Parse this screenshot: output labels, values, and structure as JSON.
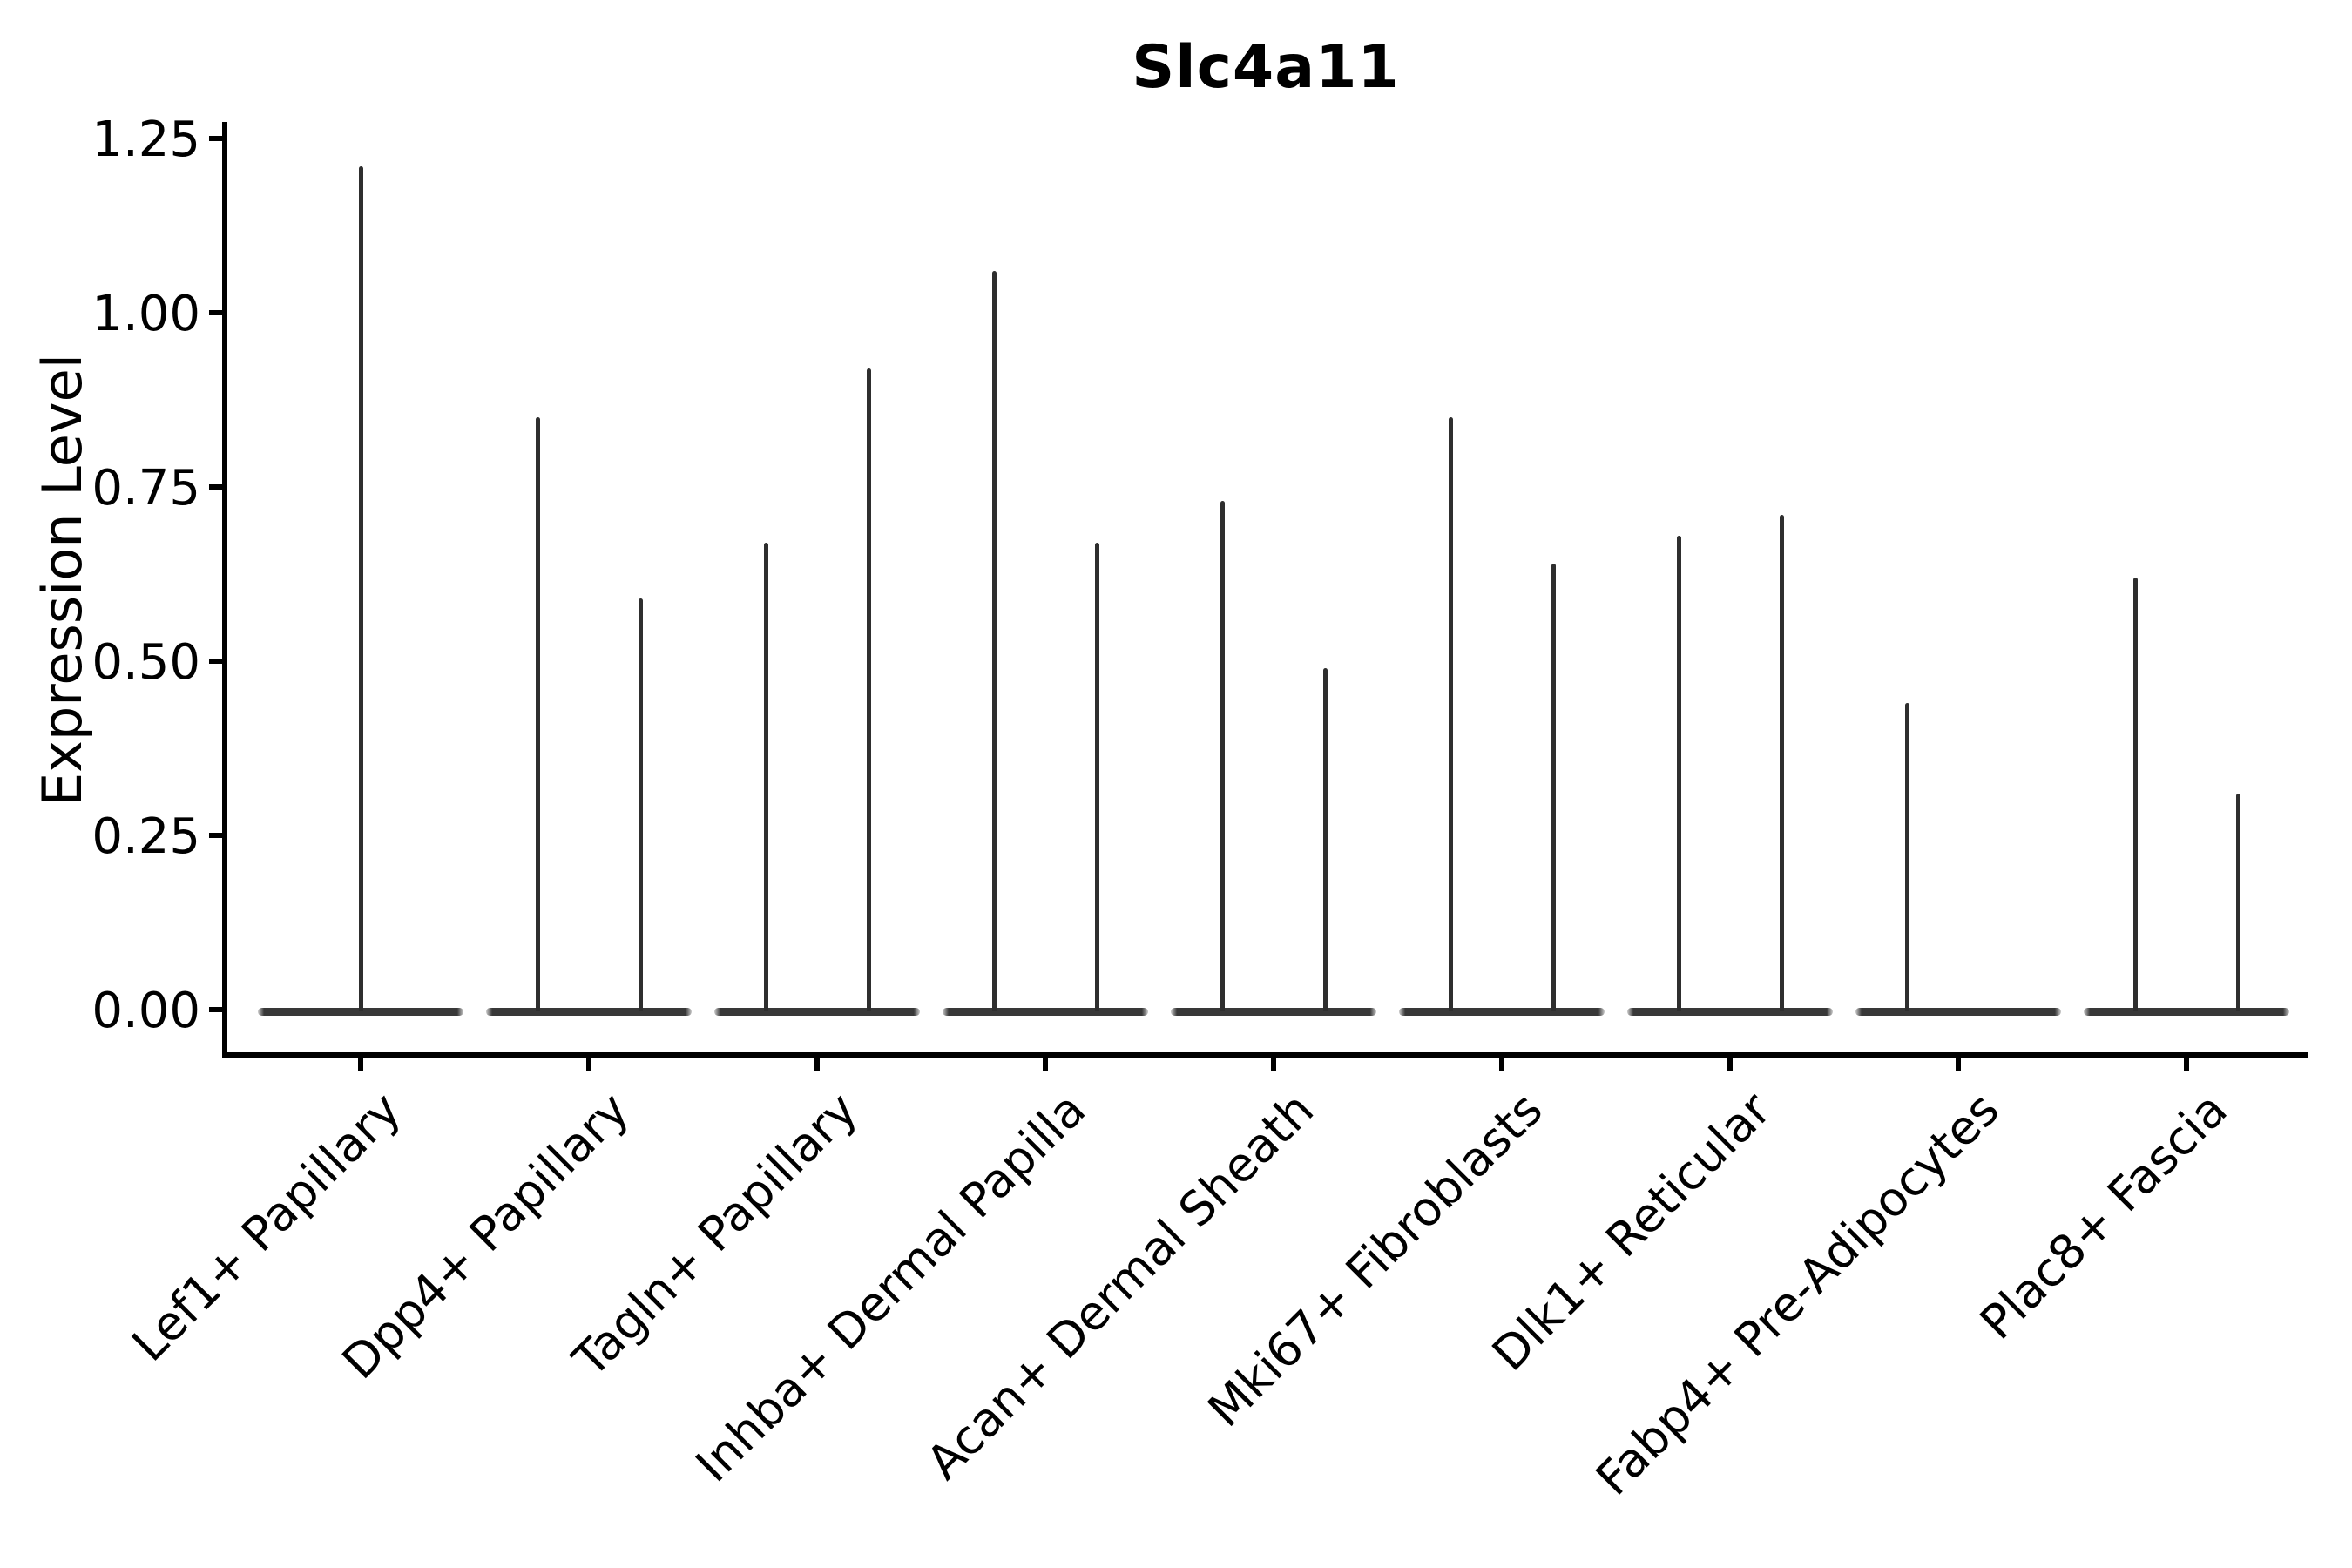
{
  "colors": {
    "violin_line": "#2e2e2e",
    "violin_body": "#383838",
    "axis": "#000000",
    "text": "#000000",
    "background": "#ffffff"
  },
  "chart_data": {
    "type": "violin",
    "title": "Slc4a11",
    "ylabel": "Expression Level",
    "xlabel": "",
    "ylim": [
      0,
      1.25
    ],
    "grid": false,
    "legend_position": "none",
    "ytick_labels": [
      "0.00",
      "0.25",
      "0.50",
      "0.75",
      "1.00",
      "1.25"
    ],
    "ytick_values": [
      0.0,
      0.25,
      0.5,
      0.75,
      1.0,
      1.25
    ],
    "categories": [
      "Lef1+ Papillary",
      "Dpp4+ Papillary",
      "Tagln+ Papillary",
      "Inhba+ Dermal Papilla",
      "Acan+ Dermal Sheath",
      "Mki67+ Fibroblasts",
      "Dlk1+ Reticular",
      "Fabp4+ Pre-Adipocytes",
      "Plac8+ Fascia"
    ],
    "violins": [
      {
        "category": "Lef1+ Papillary",
        "spikes": [
          {
            "position": "center",
            "max": 1.21
          }
        ]
      },
      {
        "category": "Dpp4+ Papillary",
        "spikes": [
          {
            "position": "left",
            "max": 0.85
          },
          {
            "position": "right",
            "max": 0.59
          }
        ]
      },
      {
        "category": "Tagln+ Papillary",
        "spikes": [
          {
            "position": "left",
            "max": 0.67
          },
          {
            "position": "right",
            "max": 0.92
          }
        ]
      },
      {
        "category": "Inhba+ Dermal Papilla",
        "spikes": [
          {
            "position": "left",
            "max": 1.06
          },
          {
            "position": "right",
            "max": 0.67
          }
        ]
      },
      {
        "category": "Acan+ Dermal Sheath",
        "spikes": [
          {
            "position": "left",
            "max": 0.73
          },
          {
            "position": "right",
            "max": 0.49
          }
        ]
      },
      {
        "category": "Mki67+ Fibroblasts",
        "spikes": [
          {
            "position": "left",
            "max": 0.85
          },
          {
            "position": "right",
            "max": 0.64
          }
        ]
      },
      {
        "category": "Dlk1+ Reticular",
        "spikes": [
          {
            "position": "left",
            "max": 0.68
          },
          {
            "position": "right",
            "max": 0.71
          }
        ]
      },
      {
        "category": "Fabp4+ Pre-Adipocytes",
        "spikes": [
          {
            "position": "left",
            "max": 0.44
          },
          {
            "position": "right",
            "max": 0.0
          }
        ]
      },
      {
        "category": "Plac8+ Fascia",
        "spikes": [
          {
            "position": "left",
            "max": 0.62
          },
          {
            "position": "right",
            "max": 0.31
          }
        ]
      }
    ]
  }
}
